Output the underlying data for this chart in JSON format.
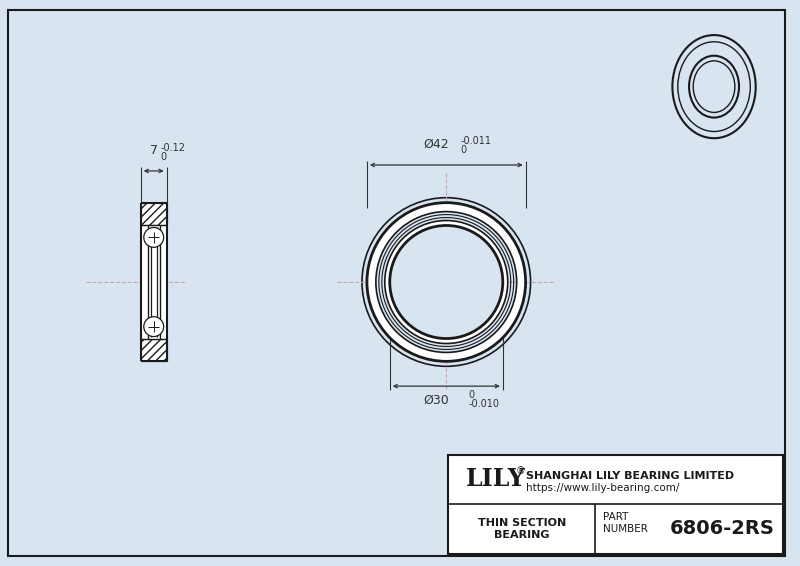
{
  "bg_color": "#d8e4f0",
  "line_color": "#1a1a1a",
  "dim_color": "#333333",
  "cl_color": "#c8a8a8",
  "white": "#ffffff",
  "title": "6806-2RS",
  "company_name": "SHANGHAI LILY BEARING LIMITED",
  "website": "https://www.lily-bearing.com/",
  "od_text": "Ø42",
  "od_tol_hi": "0",
  "od_tol_lo": "-0.011",
  "id_text": "Ø30",
  "id_tol_hi": "0",
  "id_tol_lo": "-0.010",
  "w_text": "7",
  "w_tol_hi": "0",
  "w_tol_lo": "-0.12",
  "bearing_type": "THIN SECTION\nBEARING",
  "part_label": "PART\nNUMBER"
}
